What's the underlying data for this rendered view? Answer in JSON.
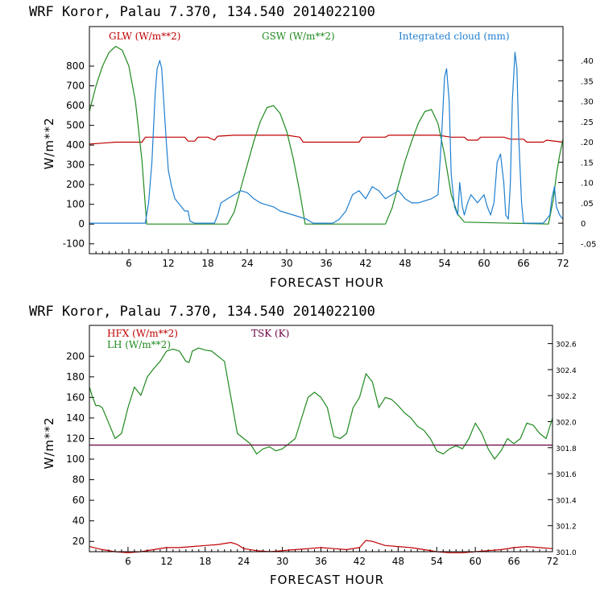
{
  "colors": {
    "red": "#c00000",
    "green": "#1f8a1f",
    "blue": "#1f7fd0",
    "purple": "#6a0040"
  },
  "chart_data": [
    {
      "type": "line",
      "title": "WRF   Koror, Palau   7.370, 134.540  2014022100",
      "xlabel": "FORECAST HOUR",
      "ylabel": "W/m**2",
      "xlim": [
        0,
        72
      ],
      "ylim": [
        -150,
        1000
      ],
      "y2lim": [
        -0.075,
        0.4833
      ],
      "x_ticks": [
        6,
        12,
        18,
        24,
        30,
        36,
        42,
        48,
        54,
        60,
        66,
        72
      ],
      "y_ticks": [
        -100,
        0,
        100,
        200,
        300,
        400,
        500,
        600,
        700,
        800
      ],
      "y2_ticks": [
        -0.05,
        0,
        0.05,
        0.1,
        0.15,
        0.2,
        0.25,
        0.3,
        0.35,
        0.4
      ],
      "y2_tick_labels": [
        "-.05",
        "0",
        ".05",
        ".10",
        ".15",
        ".20",
        ".25",
        ".30",
        ".35",
        ".40"
      ],
      "legend": [
        "GLW (W/m**2)",
        "GSW (W/m**2)",
        "Integrated cloud (mm)"
      ],
      "series": [
        {
          "name": "GLW (W/m**2)",
          "color": "red",
          "axis": "left",
          "x": [
            0,
            2,
            4,
            8,
            8.5,
            12,
            14.5,
            15,
            16,
            16.5,
            18,
            19,
            19.5,
            22,
            30,
            32,
            32.5,
            40,
            41,
            41.5,
            45,
            45.5,
            53,
            55,
            57,
            57.5,
            59,
            59.5,
            63,
            64,
            66,
            66.5,
            69,
            69.5,
            72
          ],
          "y": [
            405,
            410,
            415,
            415,
            440,
            440,
            440,
            420,
            420,
            440,
            440,
            425,
            445,
            450,
            450,
            440,
            415,
            415,
            415,
            440,
            440,
            450,
            450,
            440,
            440,
            425,
            425,
            440,
            440,
            430,
            430,
            415,
            415,
            425,
            415
          ]
        },
        {
          "name": "GSW (W/m**2)",
          "color": "green",
          "axis": "left",
          "x": [
            0,
            1,
            2,
            3,
            4,
            5,
            6,
            7,
            8,
            8.7,
            21,
            22,
            23,
            24,
            25,
            26,
            27,
            28,
            29,
            30,
            31,
            32,
            32.8,
            45,
            46,
            47,
            48,
            49,
            50,
            51,
            52,
            53,
            54,
            55,
            56,
            57,
            69.8,
            70.5,
            71,
            71.5,
            72
          ],
          "y": [
            570,
            700,
            800,
            870,
            900,
            880,
            800,
            620,
            320,
            0,
            0,
            60,
            180,
            300,
            420,
            520,
            590,
            600,
            560,
            470,
            330,
            160,
            0,
            0,
            80,
            200,
            320,
            420,
            510,
            570,
            580,
            510,
            350,
            150,
            50,
            10,
            0,
            120,
            250,
            350,
            430
          ]
        },
        {
          "name": "Integrated cloud (mm)",
          "color": "blue",
          "axis": "right",
          "x": [
            0,
            8.5,
            9,
            9.5,
            10,
            10.3,
            10.7,
            11,
            11.3,
            11.7,
            12,
            12.5,
            13,
            13.5,
            14,
            14.5,
            15,
            15.3,
            16,
            19,
            19.5,
            20,
            21,
            22,
            23,
            24,
            25,
            26,
            27,
            28,
            29,
            30,
            31,
            32,
            33,
            34,
            37,
            38,
            39,
            40,
            41,
            42,
            43,
            44,
            45,
            46,
            47,
            48,
            49,
            50,
            51,
            52,
            53,
            53.5,
            54,
            54.3,
            54.7,
            55,
            55.5,
            56,
            56.3,
            56.7,
            57,
            57.5,
            58,
            58.5,
            59,
            59.5,
            60,
            60.5,
            61,
            61.5,
            62,
            62.5,
            63,
            63.3,
            63.7,
            64,
            64.3,
            64.7,
            65,
            65.3,
            65.7,
            66,
            66.2,
            67,
            68,
            69,
            69.5,
            70,
            70.3,
            70.7,
            71,
            71.5,
            72
          ],
          "y": [
            0,
            0,
            0.05,
            0.15,
            0.32,
            0.38,
            0.4,
            0.38,
            0.3,
            0.2,
            0.13,
            0.09,
            0.06,
            0.05,
            0.04,
            0.03,
            0.03,
            0.005,
            0,
            0,
            0.02,
            0.05,
            0.06,
            0.07,
            0.08,
            0.075,
            0.06,
            0.05,
            0.045,
            0.04,
            0.03,
            0.025,
            0.02,
            0.015,
            0.01,
            0,
            0,
            0.01,
            0.03,
            0.07,
            0.08,
            0.06,
            0.09,
            0.08,
            0.06,
            0.07,
            0.08,
            0.06,
            0.05,
            0.05,
            0.055,
            0.06,
            0.07,
            0.2,
            0.36,
            0.38,
            0.3,
            0.12,
            0.04,
            0.02,
            0.1,
            0.04,
            0.02,
            0.05,
            0.07,
            0.06,
            0.05,
            0.06,
            0.07,
            0.04,
            0.02,
            0.05,
            0.15,
            0.17,
            0.1,
            0.02,
            0.01,
            0.1,
            0.3,
            0.42,
            0.38,
            0.2,
            0.05,
            0,
            0,
            0,
            0,
            0,
            0.01,
            0.02,
            0.06,
            0.09,
            0.04,
            0.02,
            0.01
          ]
        }
      ]
    },
    {
      "type": "line",
      "title": "WRF   Koror, Palau   7.370, 134.540  2014022100",
      "xlabel": "FORECAST HOUR",
      "ylabel": "W/m**2",
      "xlim": [
        0,
        72
      ],
      "ylim": [
        10,
        230
      ],
      "y2lim": [
        301.0,
        302.74
      ],
      "x_ticks": [
        6,
        12,
        18,
        24,
        30,
        36,
        42,
        48,
        54,
        60,
        66,
        72
      ],
      "y_ticks": [
        20,
        40,
        60,
        80,
        100,
        120,
        140,
        160,
        180,
        200
      ],
      "y2_ticks": [
        301.0,
        301.2,
        301.4,
        301.6,
        301.8,
        302.0,
        302.2,
        302.4,
        302.6
      ],
      "y2_tick_labels": [
        "301.0",
        "301.2",
        "301.4",
        "301.6",
        "301.8",
        "302.0",
        "302.2",
        "302.4",
        "302.6"
      ],
      "legend": [
        "HFX (W/m**2)",
        "LH  (W/m**2)",
        "TSK (K)"
      ],
      "series": [
        {
          "name": "HFX (W/m**2)",
          "color": "red",
          "axis": "left",
          "x": [
            0,
            2,
            4,
            6,
            8,
            10,
            12,
            14,
            16,
            18,
            20,
            22,
            23,
            24,
            26,
            28,
            30,
            32,
            34,
            36,
            38,
            40,
            42,
            43,
            44,
            46,
            48,
            50,
            52,
            54,
            56,
            58,
            60,
            62,
            64,
            66,
            68,
            70,
            72
          ],
          "y": [
            15,
            12,
            10,
            9,
            10,
            12,
            14,
            14,
            15,
            16,
            17,
            19,
            17,
            13,
            11,
            10,
            11,
            12,
            13,
            14,
            13,
            12,
            14,
            21,
            20,
            16,
            15,
            14,
            12,
            10,
            9,
            9,
            10,
            11,
            12,
            14,
            15,
            14,
            13
          ]
        },
        {
          "name": "LH  (W/m**2)",
          "color": "green",
          "axis": "left",
          "x": [
            0,
            0.5,
            1,
            1.5,
            2,
            3,
            4,
            5,
            6,
            7,
            8,
            9,
            10,
            11,
            12,
            13,
            14,
            15,
            15.5,
            16,
            17,
            18,
            19,
            20,
            21,
            22,
            23,
            24,
            25,
            26,
            27,
            28,
            29,
            30,
            31,
            32,
            33,
            34,
            35,
            36,
            37,
            38,
            39,
            40,
            41,
            42,
            43,
            44,
            45,
            46,
            47,
            48,
            49,
            50,
            51,
            52,
            53,
            54,
            55,
            56,
            57,
            58,
            59,
            60,
            61,
            62,
            63,
            64,
            65,
            66,
            67,
            68,
            69,
            70,
            71,
            72
          ],
          "y": [
            170,
            160,
            152,
            152,
            150,
            135,
            120,
            125,
            150,
            170,
            162,
            180,
            188,
            195,
            205,
            207,
            205,
            195,
            194,
            205,
            208,
            206,
            205,
            200,
            195,
            160,
            125,
            120,
            115,
            105,
            110,
            112,
            108,
            110,
            115,
            120,
            140,
            160,
            165,
            160,
            150,
            122,
            120,
            125,
            150,
            160,
            183,
            175,
            150,
            160,
            158,
            152,
            145,
            140,
            132,
            128,
            120,
            108,
            105,
            110,
            113,
            110,
            120,
            135,
            125,
            110,
            100,
            108,
            120,
            115,
            120,
            135,
            133,
            125,
            120,
            140
          ]
        },
        {
          "name": "TSK (K)",
          "color": "purple",
          "axis": "right",
          "x": [
            0,
            72
          ],
          "y": [
            301.82,
            301.82
          ]
        }
      ]
    }
  ]
}
